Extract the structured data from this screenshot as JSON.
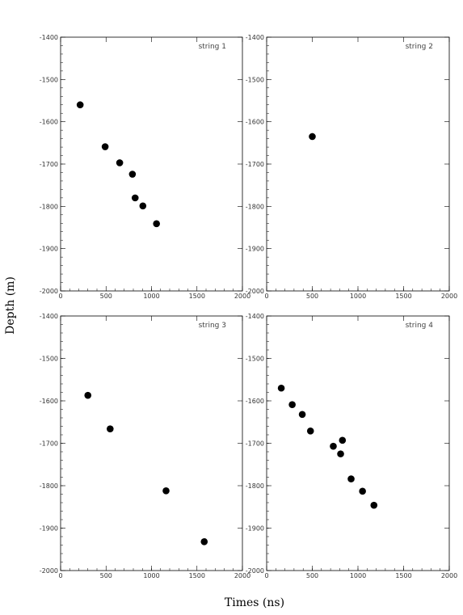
{
  "figure": {
    "xlabel": "Times (ns)",
    "ylabel": "Depth (m)"
  },
  "chart_data": [
    {
      "type": "scatter",
      "label": "string 1",
      "xlim": [
        0,
        2000
      ],
      "ylim": [
        -2000,
        -1400
      ],
      "x_ticks": [
        0,
        500,
        1000,
        1500,
        2000
      ],
      "y_ticks": [
        -2000,
        -1900,
        -1800,
        -1700,
        -1600,
        -1500,
        -1400
      ],
      "points": [
        {
          "x": 215,
          "y": -1560
        },
        {
          "x": 490,
          "y": -1659
        },
        {
          "x": 650,
          "y": -1697
        },
        {
          "x": 790,
          "y": -1724
        },
        {
          "x": 820,
          "y": -1780
        },
        {
          "x": 905,
          "y": -1799
        },
        {
          "x": 1055,
          "y": -1841
        }
      ]
    },
    {
      "type": "scatter",
      "label": "string 2",
      "xlim": [
        0,
        2000
      ],
      "ylim": [
        -2000,
        -1400
      ],
      "x_ticks": [
        0,
        500,
        1000,
        1500,
        2000
      ],
      "y_ticks": [
        -2000,
        -1900,
        -1800,
        -1700,
        -1600,
        -1500,
        -1400
      ],
      "points": [
        {
          "x": 500,
          "y": -1635
        }
      ]
    },
    {
      "type": "scatter",
      "label": "string 3",
      "xlim": [
        0,
        2000
      ],
      "ylim": [
        -2000,
        -1400
      ],
      "x_ticks": [
        0,
        500,
        1000,
        1500,
        2000
      ],
      "y_ticks": [
        -2000,
        -1900,
        -1800,
        -1700,
        -1600,
        -1500,
        -1400
      ],
      "points": [
        {
          "x": 300,
          "y": -1587
        },
        {
          "x": 545,
          "y": -1666
        },
        {
          "x": 1160,
          "y": -1812
        },
        {
          "x": 1580,
          "y": -1932
        }
      ]
    },
    {
      "type": "scatter",
      "label": "string 4",
      "xlim": [
        0,
        2000
      ],
      "ylim": [
        -2000,
        -1400
      ],
      "x_ticks": [
        0,
        500,
        1000,
        1500,
        2000
      ],
      "y_ticks": [
        -2000,
        -1900,
        -1800,
        -1700,
        -1600,
        -1500,
        -1400
      ],
      "points": [
        {
          "x": 160,
          "y": -1570
        },
        {
          "x": 280,
          "y": -1609
        },
        {
          "x": 390,
          "y": -1632
        },
        {
          "x": 480,
          "y": -1671
        },
        {
          "x": 730,
          "y": -1707
        },
        {
          "x": 810,
          "y": -1725
        },
        {
          "x": 830,
          "y": -1693
        },
        {
          "x": 925,
          "y": -1784
        },
        {
          "x": 1050,
          "y": -1813
        },
        {
          "x": 1175,
          "y": -1846
        }
      ]
    }
  ]
}
